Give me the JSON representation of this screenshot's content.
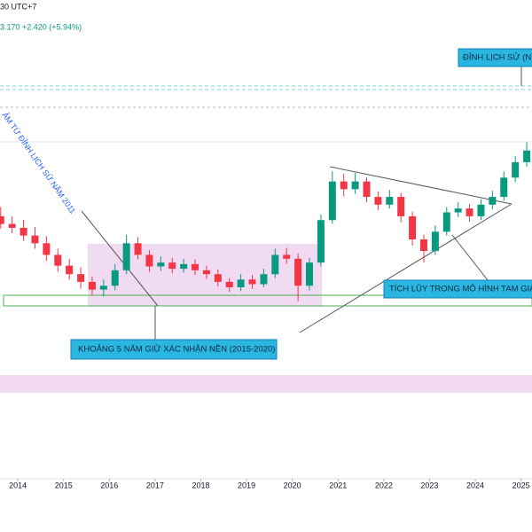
{
  "header": {
    "time_zone": "30 UTC+7",
    "quote": "3.170 +2.420 (+5.94%)"
  },
  "chart_data": {
    "type": "candlestick",
    "x": [
      2013.625,
      2013.875,
      2014.125,
      2014.375,
      2014.625,
      2014.875,
      2015.125,
      2015.375,
      2015.625,
      2015.875,
      2016.125,
      2016.375,
      2016.625,
      2016.875,
      2017.125,
      2017.375,
      2017.625,
      2017.875,
      2018.125,
      2018.375,
      2018.625,
      2018.875,
      2019.125,
      2019.375,
      2019.625,
      2019.875,
      2020.125,
      2020.375,
      2020.625,
      2020.875,
      2021.125,
      2021.375,
      2021.625,
      2021.875,
      2022.125,
      2022.375,
      2022.625,
      2022.875,
      2023.125,
      2023.375,
      2023.625,
      2023.875,
      2024.125,
      2024.375,
      2024.625,
      2024.875,
      2025.125
    ],
    "ohlc": [
      [
        34.0,
        35.2,
        32.4,
        33.0
      ],
      [
        33.0,
        34.0,
        31.8,
        32.5
      ],
      [
        32.5,
        33.5,
        30.8,
        31.5
      ],
      [
        31.5,
        32.6,
        29.8,
        30.5
      ],
      [
        30.5,
        31.4,
        28.2,
        29.0
      ],
      [
        29.0,
        29.8,
        26.8,
        27.6
      ],
      [
        27.6,
        28.5,
        25.8,
        26.5
      ],
      [
        26.5,
        27.4,
        24.6,
        25.5
      ],
      [
        25.5,
        26.2,
        23.8,
        24.5
      ],
      [
        24.5,
        25.8,
        23.6,
        25.0
      ],
      [
        25.0,
        27.8,
        24.4,
        27.0
      ],
      [
        27.0,
        31.6,
        26.5,
        30.5
      ],
      [
        30.5,
        31.3,
        28.4,
        29.0
      ],
      [
        29.0,
        29.6,
        26.8,
        27.5
      ],
      [
        27.5,
        28.8,
        26.9,
        28.0
      ],
      [
        28.0,
        28.6,
        26.6,
        27.2
      ],
      [
        27.2,
        28.5,
        26.7,
        27.8
      ],
      [
        27.8,
        28.4,
        26.4,
        27.0
      ],
      [
        27.0,
        27.6,
        25.9,
        26.5
      ],
      [
        26.5,
        27.1,
        24.9,
        25.5
      ],
      [
        25.5,
        26.0,
        24.2,
        24.8
      ],
      [
        24.8,
        26.5,
        24.3,
        25.8
      ],
      [
        25.8,
        26.4,
        24.6,
        25.2
      ],
      [
        25.2,
        27.2,
        24.8,
        26.5
      ],
      [
        26.5,
        29.8,
        26.0,
        29.0
      ],
      [
        29.0,
        29.9,
        27.8,
        28.5
      ],
      [
        28.5,
        29.2,
        23.0,
        25.0
      ],
      [
        25.0,
        28.6,
        24.4,
        28.0
      ],
      [
        28.0,
        34.2,
        27.5,
        33.5
      ],
      [
        33.5,
        39.8,
        33.0,
        38.5
      ],
      [
        38.5,
        39.5,
        36.6,
        37.5
      ],
      [
        37.5,
        39.6,
        36.9,
        38.5
      ],
      [
        38.5,
        39.0,
        35.8,
        36.5
      ],
      [
        36.5,
        37.2,
        34.8,
        35.5
      ],
      [
        35.5,
        37.4,
        35.0,
        36.5
      ],
      [
        36.5,
        37.0,
        33.2,
        34.0
      ],
      [
        34.0,
        34.6,
        30.2,
        31.0
      ],
      [
        31.0,
        31.6,
        28.0,
        29.5
      ],
      [
        29.5,
        32.8,
        29.0,
        32.0
      ],
      [
        32.0,
        35.2,
        31.5,
        34.5
      ],
      [
        34.5,
        35.8,
        33.9,
        35.0
      ],
      [
        35.0,
        35.6,
        33.3,
        34.0
      ],
      [
        34.0,
        36.2,
        33.5,
        35.5
      ],
      [
        35.5,
        37.3,
        34.9,
        36.5
      ],
      [
        36.5,
        39.8,
        36.0,
        39.0
      ],
      [
        39.0,
        41.8,
        38.4,
        41.0
      ],
      [
        41.0,
        43.6,
        40.4,
        42.5
      ]
    ],
    "up_color": "#089981",
    "down_color": "#f23645",
    "xlim": [
      2013.61,
      2025.24
    ],
    "ylim": [
      0,
      62
    ],
    "xticks": [
      2014,
      2015,
      2016,
      2017,
      2018,
      2019,
      2020,
      2021,
      2022,
      2023,
      2024,
      2025
    ],
    "annotations": [
      "ĐỈNH LỊCH SỬ (N",
      "KHOẢNG 5 NĂM GIỮ XÁC NHẬN NỀN (2015-2020)",
      "TÍCH LŨY TRONG MÔ HÌNH TAM GIÁC - SA",
      "ẢM TỪ ĐỈNH LỊCH SỬ NĂM 2011"
    ]
  }
}
